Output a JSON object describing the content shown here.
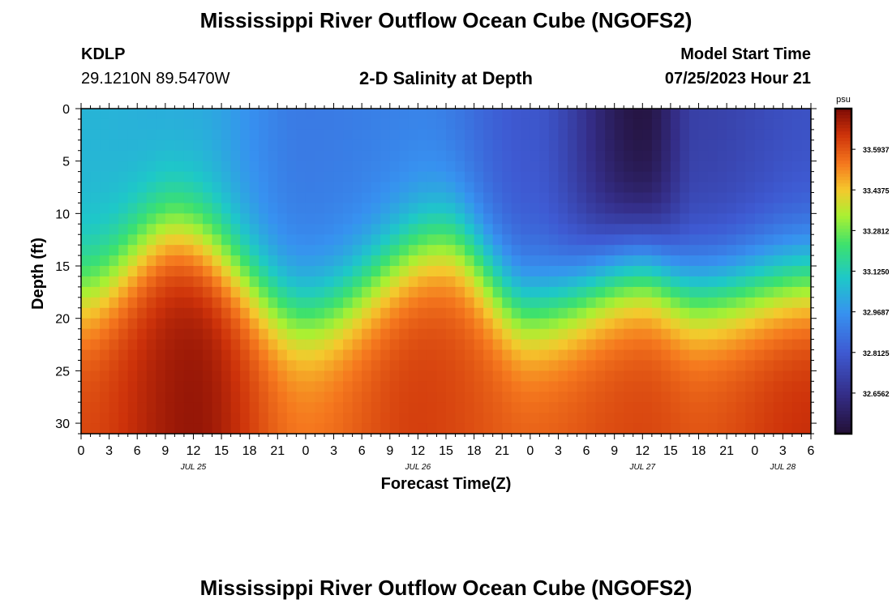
{
  "header": {
    "title": "Mississippi River Outflow Ocean Cube (NGOFS2)",
    "station_id": "KDLP",
    "station_coords": "29.1210N  89.5470W",
    "subtitle": "2-D Salinity at Depth",
    "model_start_label": "Model Start Time",
    "model_start_value": "07/25/2023 Hour 21"
  },
  "footer": {
    "title": "Mississippi River Outflow Ocean Cube (NGOFS2)"
  },
  "chart_data": {
    "type": "heatmap",
    "title": "2-D Salinity at Depth",
    "xlabel": "Forecast Time(Z)",
    "ylabel": "Depth (ft)",
    "x_hour_offsets_range": [
      0,
      78
    ],
    "x_tick_labels": [
      "0",
      "3",
      "6",
      "9",
      "12",
      "15",
      "18",
      "21",
      "0",
      "3",
      "6",
      "9",
      "12",
      "15",
      "18",
      "21",
      "0",
      "3",
      "6",
      "9",
      "12",
      "15",
      "18",
      "21",
      "0",
      "3",
      "6"
    ],
    "date_labels": [
      {
        "label": "JUL 25",
        "hour_index": 12
      },
      {
        "label": "JUL 26",
        "hour_index": 36
      },
      {
        "label": "JUL 27",
        "hour_index": 60
      },
      {
        "label": "JUL 28",
        "hour_index": 75
      }
    ],
    "ylim": [
      0,
      31
    ],
    "y_ticks": [
      0,
      5,
      10,
      15,
      20,
      25,
      30
    ],
    "colorbar": {
      "unit": "psu",
      "ticks": [
        "33.5937",
        "33.4375",
        "33.2812",
        "33.1250",
        "32.9687",
        "32.8125",
        "32.6562"
      ],
      "range": [
        32.5,
        33.75
      ]
    },
    "salinity_shape": {
      "top_value_by_hour": [
        [
          0,
          33.05
        ],
        [
          12,
          33.02
        ],
        [
          24,
          32.9
        ],
        [
          36,
          32.92
        ],
        [
          48,
          32.8
        ],
        [
          60,
          32.52
        ],
        [
          66,
          32.72
        ],
        [
          78,
          32.78
        ]
      ],
      "bottom_value_by_hour": [
        [
          0,
          33.62
        ],
        [
          12,
          33.72
        ],
        [
          24,
          33.55
        ],
        [
          36,
          33.63
        ],
        [
          48,
          33.58
        ],
        [
          60,
          33.62
        ],
        [
          66,
          33.6
        ],
        [
          78,
          33.66
        ]
      ],
      "halocline_depth_ft_by_hour": [
        [
          0,
          17.5
        ],
        [
          10,
          11.5
        ],
        [
          24,
          19.5
        ],
        [
          39,
          12.5
        ],
        [
          48,
          19.0
        ],
        [
          60,
          15.0
        ],
        [
          66,
          17.5
        ],
        [
          78,
          16.0
        ]
      ]
    }
  }
}
